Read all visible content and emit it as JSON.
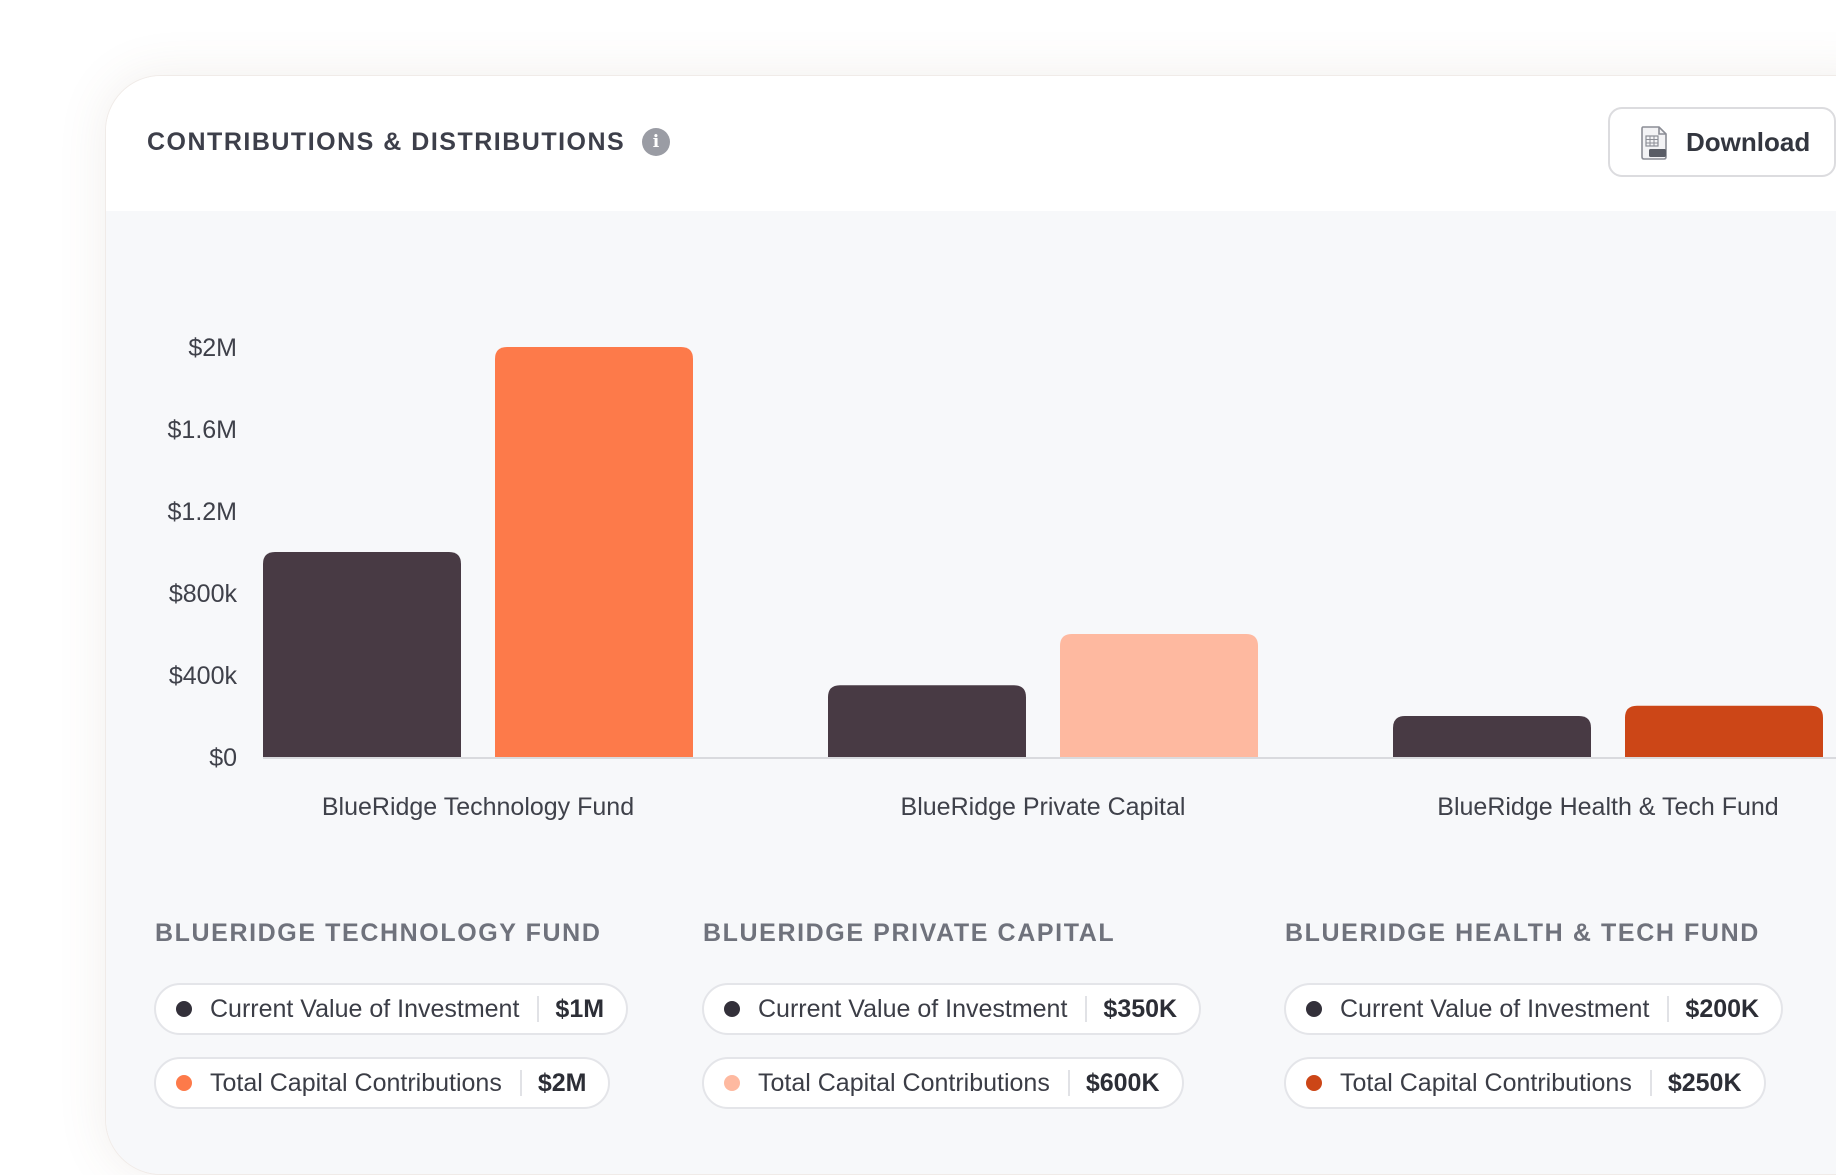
{
  "header": {
    "title": "CONTRIBUTIONS & DISTRIBUTIONS",
    "download_label": "Download"
  },
  "chart_data": {
    "type": "bar",
    "categories": [
      "BlueRidge Technology Fund",
      "BlueRidge Private Capital",
      "BlueRidge Health & Tech Fund"
    ],
    "series": [
      {
        "name": "Current Value of Investment",
        "values": [
          1000000,
          350000,
          200000
        ]
      },
      {
        "name": "Total Capital Contributions",
        "values": [
          2000000,
          600000,
          250000
        ]
      }
    ],
    "colors": {
      "current_value": "#483a44",
      "contributions": [
        "#fd7a4a",
        "#feb9a0",
        "#cc4617"
      ]
    },
    "yticks": [
      "$0",
      "$400k",
      "$800k",
      "$1.2M",
      "$1.6M",
      "$2M"
    ],
    "ytick_values": [
      0,
      400000,
      800000,
      1200000,
      1600000,
      2000000
    ],
    "ylim": [
      0,
      2000000
    ],
    "grid": false
  },
  "funds": [
    {
      "heading": "BLUERIDGE TECHNOLOGY FUND",
      "current_label": "Current Value of Investment",
      "current_value": "$1M",
      "contrib_label": "Total Capital Contributions",
      "contrib_value": "$2M",
      "contrib_color": "#fd7a4a"
    },
    {
      "heading": "BLUERIDGE PRIVATE CAPITAL",
      "current_label": "Current Value of Investment",
      "current_value": "$350K",
      "contrib_label": "Total Capital Contributions",
      "contrib_value": "$600K",
      "contrib_color": "#feb9a0"
    },
    {
      "heading": "BLUERIDGE HEALTH & TECH FUND",
      "current_label": "Current Value of Investment",
      "current_value": "$200K",
      "contrib_label": "Total Capital Contributions",
      "contrib_value": "$250K",
      "contrib_color": "#cc4617"
    }
  ],
  "current_dot_color": "#33303a",
  "icons": {
    "info": "info-icon",
    "download": "csv-file-icon"
  }
}
